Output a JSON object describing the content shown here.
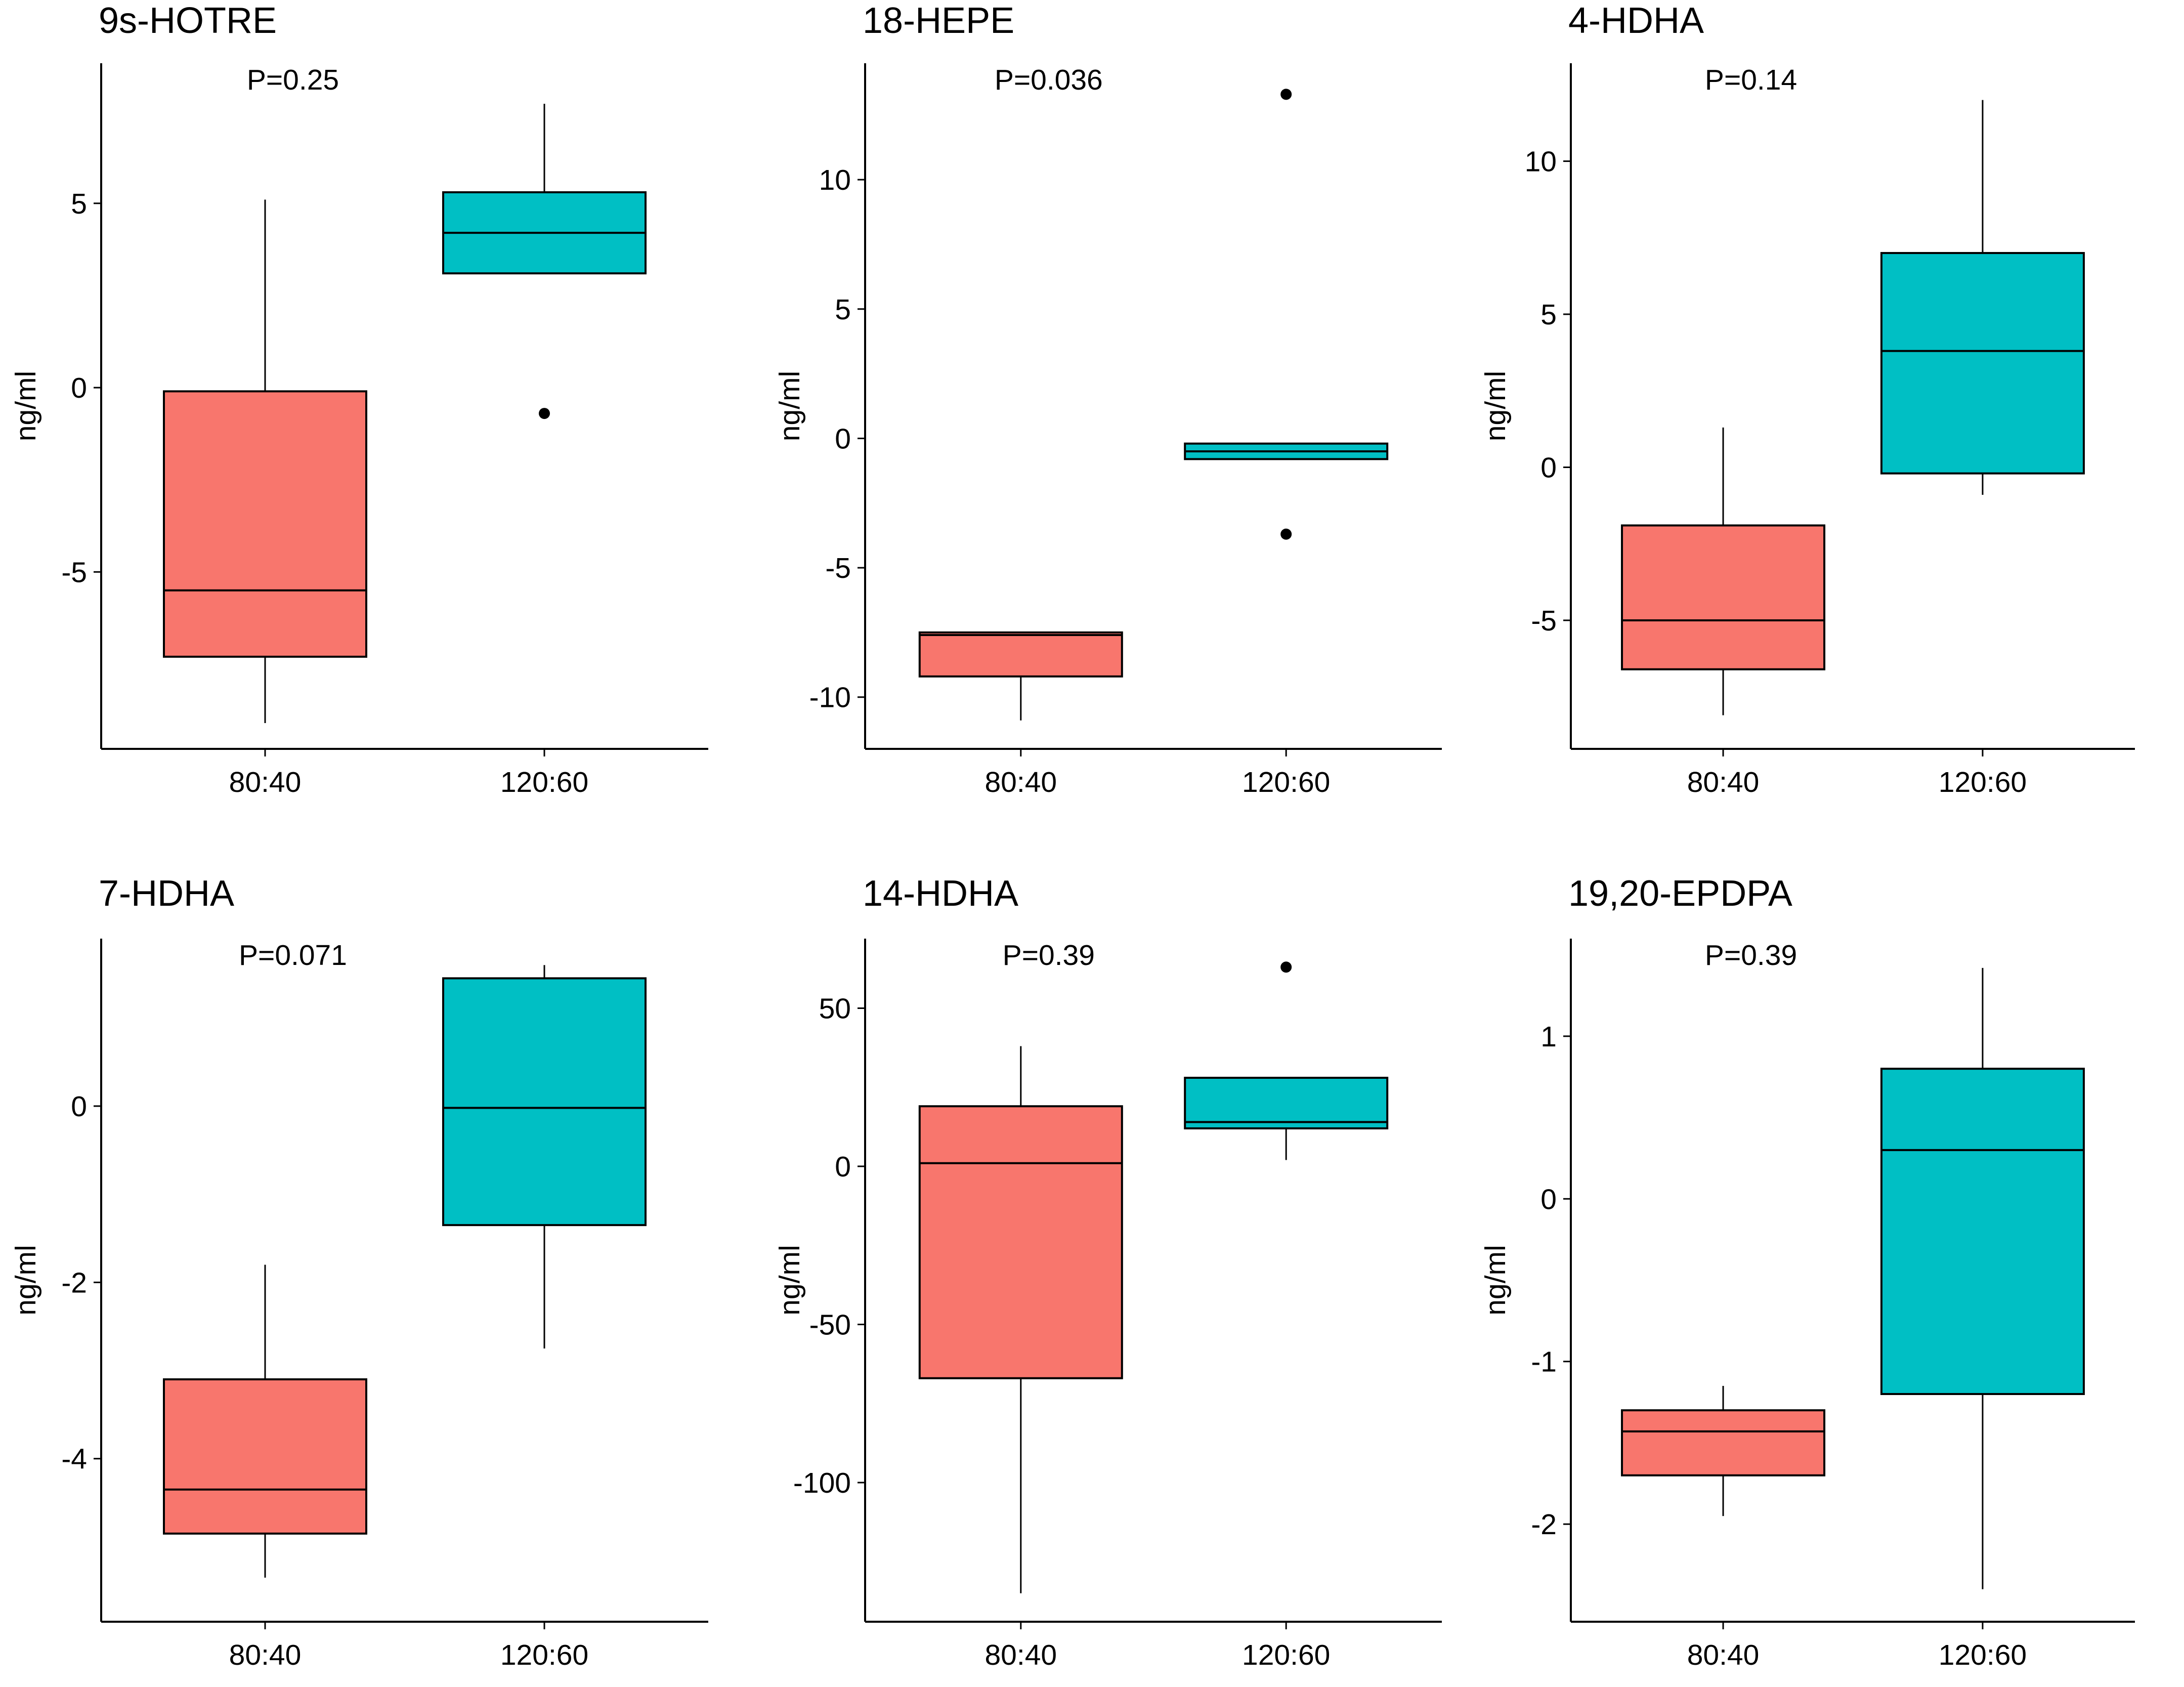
{
  "colors": {
    "group1_fill": "#F8766D",
    "group2_fill": "#00BFC4",
    "stroke": "#000000",
    "background": "#FFFFFF"
  },
  "chart_data": [
    {
      "type": "box",
      "title": "9s-HOTRE",
      "annotation": "P=0.25",
      "xlabel": "",
      "ylabel": "ng/ml",
      "categories": [
        "80:40",
        "120:60"
      ],
      "ylim": [
        -9.8,
        8.8
      ],
      "yticks": [
        -5,
        0,
        5
      ],
      "ytick_labels": [
        "-5",
        "0",
        "5"
      ],
      "boxes": [
        {
          "category": "80:40",
          "whisker_low": -9.1,
          "q1": -7.3,
          "median": -5.5,
          "q3": -0.1,
          "whisker_high": 5.1,
          "outliers": []
        },
        {
          "category": "120:60",
          "whisker_low": 3.1,
          "q1": 3.1,
          "median": 4.2,
          "q3": 5.3,
          "whisker_high": 7.7,
          "outliers": [
            -0.7
          ]
        }
      ]
    },
    {
      "type": "box",
      "title": "18-HEPE",
      "annotation": "P=0.036",
      "xlabel": "",
      "ylabel": "ng/ml",
      "categories": [
        "80:40",
        "120:60"
      ],
      "ylim": [
        -12.0,
        14.5
      ],
      "yticks": [
        -10,
        -5,
        0,
        5,
        10
      ],
      "ytick_labels": [
        "-10",
        "-5",
        "0",
        "5",
        "10"
      ],
      "boxes": [
        {
          "category": "80:40",
          "whisker_low": -10.9,
          "q1": -9.2,
          "median": -7.6,
          "q3": -7.5,
          "whisker_high": -7.5,
          "outliers": []
        },
        {
          "category": "120:60",
          "whisker_low": -0.8,
          "q1": -0.8,
          "median": -0.5,
          "q3": -0.2,
          "whisker_high": -0.2,
          "outliers": [
            13.3,
            -3.7
          ]
        }
      ]
    },
    {
      "type": "box",
      "title": "4-HDHA",
      "annotation": "P=0.14",
      "xlabel": "",
      "ylabel": "ng/ml",
      "categories": [
        "80:40",
        "120:60"
      ],
      "ylim": [
        -9.2,
        13.2
      ],
      "yticks": [
        -5,
        0,
        5,
        10
      ],
      "ytick_labels": [
        "-5",
        "0",
        "5",
        "10"
      ],
      "boxes": [
        {
          "category": "80:40",
          "whisker_low": -8.1,
          "q1": -6.6,
          "median": -5.0,
          "q3": -1.9,
          "whisker_high": 1.3,
          "outliers": []
        },
        {
          "category": "120:60",
          "whisker_low": -0.9,
          "q1": -0.2,
          "median": 3.8,
          "q3": 7.0,
          "whisker_high": 12.0,
          "outliers": []
        }
      ]
    },
    {
      "type": "box",
      "title": "7-HDHA",
      "annotation": "P=0.071",
      "xlabel": "",
      "ylabel": "ng/ml",
      "categories": [
        "80:40",
        "120:60"
      ],
      "ylim": [
        -5.85,
        1.9
      ],
      "yticks": [
        -4,
        -2,
        0
      ],
      "ytick_labels": [
        "-4",
        "-2",
        "0"
      ],
      "boxes": [
        {
          "category": "80:40",
          "whisker_low": -5.35,
          "q1": -4.85,
          "median": -4.35,
          "q3": -3.1,
          "whisker_high": -1.8,
          "outliers": []
        },
        {
          "category": "120:60",
          "whisker_low": -2.75,
          "q1": -1.35,
          "median": -0.02,
          "q3": 1.45,
          "whisker_high": 1.6,
          "outliers": []
        }
      ]
    },
    {
      "type": "box",
      "title": "14-HDHA",
      "annotation": "P=0.39",
      "xlabel": "",
      "ylabel": "ng/ml",
      "categories": [
        "80:40",
        "120:60"
      ],
      "ylim": [
        -144,
        72
      ],
      "yticks": [
        -100,
        -50,
        0,
        50
      ],
      "ytick_labels": [
        "-100",
        "-50",
        "0",
        "50"
      ],
      "boxes": [
        {
          "category": "80:40",
          "whisker_low": -135,
          "q1": -67,
          "median": 1,
          "q3": 19,
          "whisker_high": 38,
          "outliers": []
        },
        {
          "category": "120:60",
          "whisker_low": 2,
          "q1": 12,
          "median": 14,
          "q3": 28,
          "whisker_high": 28,
          "outliers": [
            63
          ]
        }
      ]
    },
    {
      "type": "box",
      "title": "19,20-EPDPA",
      "annotation": "P=0.39",
      "xlabel": "",
      "ylabel": "ng/ml",
      "categories": [
        "80:40",
        "120:60"
      ],
      "ylim": [
        -2.6,
        1.6
      ],
      "yticks": [
        -2,
        -1,
        0,
        1
      ],
      "ytick_labels": [
        "-2",
        "-1",
        "0",
        "1"
      ],
      "boxes": [
        {
          "category": "80:40",
          "whisker_low": -1.95,
          "q1": -1.7,
          "median": -1.43,
          "q3": -1.3,
          "whisker_high": -1.15,
          "outliers": []
        },
        {
          "category": "120:60",
          "whisker_low": -2.4,
          "q1": -1.2,
          "median": 0.3,
          "q3": 0.8,
          "whisker_high": 1.42,
          "outliers": []
        }
      ]
    }
  ]
}
